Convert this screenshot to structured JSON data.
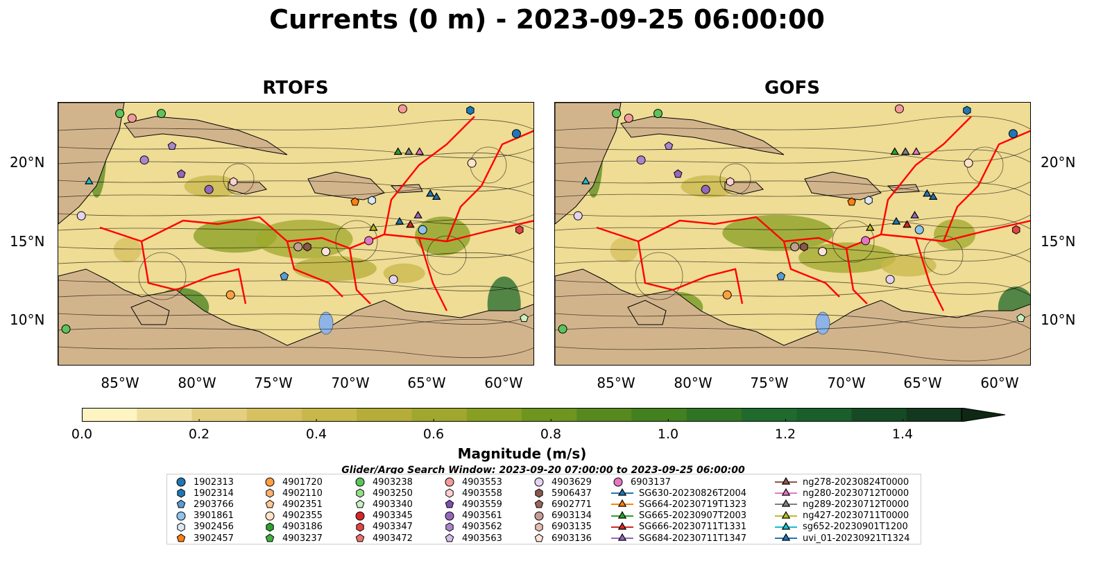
{
  "title": "Currents (0 m) - 2023-09-25 06:00:00",
  "panels": [
    {
      "title": "RTOFS"
    },
    {
      "title": "GOFS"
    }
  ],
  "lat_labels": [
    "20°N",
    "15°N",
    "10°N"
  ],
  "lon_labels": [
    "85°W",
    "80°W",
    "75°W",
    "70°W",
    "65°W",
    "60°W"
  ],
  "colorbar": {
    "label": "Magnitude (m/s)",
    "ticks": [
      "0.0",
      "0.2",
      "0.4",
      "0.6",
      "0.8",
      "1.0",
      "1.2",
      "1.4"
    ],
    "colors": [
      "#fdf4c1",
      "#f0e0a0",
      "#e3cf7f",
      "#d6c060",
      "#c8b84a",
      "#b5ad38",
      "#9fa82c",
      "#879f22",
      "#6e951e",
      "#58891e",
      "#43801f",
      "#2f7424",
      "#1f6a2c",
      "#195f2b",
      "#164a24",
      "#13381d",
      "#0e2813"
    ],
    "vmax": 1.5
  },
  "search_window": "Glider/Argo Search Window: 2023-09-20 07:00:00 to 2023-09-25 06:00:00",
  "legend": [
    [
      {
        "label": "1902313",
        "marker": "circle",
        "color": "#1f77b4"
      },
      {
        "label": "1902314",
        "marker": "hexagon",
        "color": "#1f77b4"
      },
      {
        "label": "2903766",
        "marker": "pentagon",
        "color": "#5a9bd4"
      },
      {
        "label": "3901861",
        "marker": "circle",
        "color": "#8dc3ee"
      },
      {
        "label": "3902456",
        "marker": "hexagon",
        "color": "#dbe9f6"
      },
      {
        "label": "3902457",
        "marker": "pentagon",
        "color": "#ff7f0e"
      }
    ],
    [
      {
        "label": "4901720",
        "marker": "circle",
        "color": "#ff9f40"
      },
      {
        "label": "4902110",
        "marker": "hexagon",
        "color": "#ffb070"
      },
      {
        "label": "4902351",
        "marker": "pentagon",
        "color": "#ffc895"
      },
      {
        "label": "4902355",
        "marker": "circle",
        "color": "#ffe3c8"
      },
      {
        "label": "4903186",
        "marker": "hexagon",
        "color": "#2ca02c"
      },
      {
        "label": "4903237",
        "marker": "pentagon",
        "color": "#3fb13f"
      }
    ],
    [
      {
        "label": "4903238",
        "marker": "circle",
        "color": "#5cc45c"
      },
      {
        "label": "4903250",
        "marker": "hexagon",
        "color": "#98df8a"
      },
      {
        "label": "4903340",
        "marker": "pentagon",
        "color": "#c8f0c0"
      },
      {
        "label": "4903345",
        "marker": "circle",
        "color": "#d62728"
      },
      {
        "label": "4903347",
        "marker": "hexagon",
        "color": "#e04545"
      },
      {
        "label": "4903472",
        "marker": "pentagon",
        "color": "#f07070"
      }
    ],
    [
      {
        "label": "4903553",
        "marker": "circle",
        "color": "#f49a9a"
      },
      {
        "label": "4903558",
        "marker": "hexagon",
        "color": "#ffd0d0"
      },
      {
        "label": "4903559",
        "marker": "pentagon",
        "color": "#7f4fb0"
      },
      {
        "label": "4903561",
        "marker": "circle",
        "color": "#9467bd"
      },
      {
        "label": "4903562",
        "marker": "hexagon",
        "color": "#a985cc"
      },
      {
        "label": "4903563",
        "marker": "pentagon",
        "color": "#d2bde6"
      }
    ],
    [
      {
        "label": "4903629",
        "marker": "circle",
        "color": "#e3d3f0"
      },
      {
        "label": "5906437",
        "marker": "hexagon",
        "color": "#8c564b"
      },
      {
        "label": "6902771",
        "marker": "pentagon",
        "color": "#9a6659"
      },
      {
        "label": "6903134",
        "marker": "circle",
        "color": "#c49c94"
      },
      {
        "label": "6903135",
        "marker": "hexagon",
        "color": "#e6bcb0"
      },
      {
        "label": "6903136",
        "marker": "pentagon",
        "color": "#fbe3da"
      }
    ],
    [
      {
        "label": "6903137",
        "marker": "circle",
        "color": "#e377c2"
      },
      {
        "label": "SG630-20230826T2004",
        "marker": "triangle",
        "color": "#1f77b4"
      },
      {
        "label": "SG664-20230719T1323",
        "marker": "triangle",
        "color": "#ff7f0e"
      },
      {
        "label": "SG665-20230907T2003",
        "marker": "triangle",
        "color": "#2ca02c"
      },
      {
        "label": "SG666-20230711T1331",
        "marker": "triangle",
        "color": "#d62728"
      },
      {
        "label": "SG684-20230711T1347",
        "marker": "triangle",
        "color": "#9467bd"
      }
    ],
    [
      {
        "label": "ng278-20230824T0000",
        "marker": "triangle",
        "color": "#8c564b"
      },
      {
        "label": "ng280-20230712T0000",
        "marker": "triangle",
        "color": "#e377c2"
      },
      {
        "label": "ng289-20230712T0000",
        "marker": "triangle",
        "color": "#7f7f7f"
      },
      {
        "label": "ng427-20230711T0000",
        "marker": "triangle",
        "color": "#bcbd22"
      },
      {
        "label": "sg652-20230901T1200",
        "marker": "triangle",
        "color": "#17becf"
      },
      {
        "label": "uvi_01-20230921T1324",
        "marker": "triangle",
        "color": "#1f77b4"
      }
    ]
  ],
  "map_extent": {
    "lon": [
      -89,
      -58
    ],
    "lat": [
      7,
      24
    ]
  },
  "land_color": "#d2b48c",
  "eez_color": "#ff0000",
  "observations": [
    {
      "lon": -84.2,
      "lat": 23.0,
      "color": "#f49a9a",
      "marker": "circle"
    },
    {
      "lon": -85.0,
      "lat": 23.3,
      "color": "#5cc45c",
      "marker": "circle"
    },
    {
      "lon": -82.3,
      "lat": 23.3,
      "color": "#5cc45c",
      "marker": "circle"
    },
    {
      "lon": -81.6,
      "lat": 21.2,
      "color": "#a985cc",
      "marker": "pentagon"
    },
    {
      "lon": -83.4,
      "lat": 20.3,
      "color": "#a985cc",
      "marker": "circle"
    },
    {
      "lon": -81.0,
      "lat": 19.4,
      "color": "#9467bd",
      "marker": "pentagon"
    },
    {
      "lon": -79.2,
      "lat": 18.4,
      "color": "#9467bd",
      "marker": "circle"
    },
    {
      "lon": -77.6,
      "lat": 18.9,
      "color": "#ffd0d0",
      "marker": "hexagon"
    },
    {
      "lon": -87.0,
      "lat": 18.9,
      "color": "#17becf",
      "marker": "triangle"
    },
    {
      "lon": -87.5,
      "lat": 16.7,
      "color": "#e3d3f0",
      "marker": "circle"
    },
    {
      "lon": -66.6,
      "lat": 23.6,
      "color": "#f49a9a",
      "marker": "circle"
    },
    {
      "lon": -62.2,
      "lat": 23.5,
      "color": "#1f77b4",
      "marker": "hexagon"
    },
    {
      "lon": -59.2,
      "lat": 22.0,
      "color": "#1f77b4",
      "marker": "circle"
    },
    {
      "lon": -66.9,
      "lat": 20.8,
      "color": "#2ca02c",
      "marker": "triangle"
    },
    {
      "lon": -66.2,
      "lat": 20.8,
      "color": "#7f7f7f",
      "marker": "triangle"
    },
    {
      "lon": -65.5,
      "lat": 20.8,
      "color": "#e377c2",
      "marker": "triangle"
    },
    {
      "lon": -62.1,
      "lat": 20.1,
      "color": "#ffe3c8",
      "marker": "circle"
    },
    {
      "lon": -69.7,
      "lat": 17.6,
      "color": "#ff7f0e",
      "marker": "pentagon"
    },
    {
      "lon": -68.6,
      "lat": 17.7,
      "color": "#dbe9f6",
      "marker": "hexagon"
    },
    {
      "lon": -64.8,
      "lat": 18.1,
      "color": "#1f77b4",
      "marker": "triangle"
    },
    {
      "lon": -64.4,
      "lat": 17.9,
      "color": "#1f77b4",
      "marker": "triangle"
    },
    {
      "lon": -65.6,
      "lat": 16.7,
      "color": "#9467bd",
      "marker": "triangle"
    },
    {
      "lon": -66.8,
      "lat": 16.3,
      "color": "#1f77b4",
      "marker": "triangle"
    },
    {
      "lon": -66.1,
      "lat": 16.1,
      "color": "#d62728",
      "marker": "triangle"
    },
    {
      "lon": -65.3,
      "lat": 15.8,
      "color": "#8dc3ee",
      "marker": "circle"
    },
    {
      "lon": -68.5,
      "lat": 15.9,
      "color": "#bcbd22",
      "marker": "triangle"
    },
    {
      "lon": -68.8,
      "lat": 15.1,
      "color": "#e377c2",
      "marker": "circle"
    },
    {
      "lon": -73.4,
      "lat": 14.7,
      "color": "#c49c94",
      "marker": "circle"
    },
    {
      "lon": -72.8,
      "lat": 14.7,
      "color": "#8c564b",
      "marker": "hexagon"
    },
    {
      "lon": -71.6,
      "lat": 14.4,
      "color": "#fbe3da",
      "marker": "circle"
    },
    {
      "lon": -74.3,
      "lat": 12.8,
      "color": "#5a9bd4",
      "marker": "pentagon"
    },
    {
      "lon": -67.2,
      "lat": 12.6,
      "color": "#e3d3f0",
      "marker": "circle"
    },
    {
      "lon": -77.8,
      "lat": 11.6,
      "color": "#ff9f40",
      "marker": "circle"
    },
    {
      "lon": -59.0,
      "lat": 15.8,
      "color": "#e04545",
      "marker": "hexagon"
    },
    {
      "lon": -58.7,
      "lat": 10.1,
      "color": "#c8f0c0",
      "marker": "pentagon"
    },
    {
      "lon": -88.5,
      "lat": 9.4,
      "color": "#5cc45c",
      "marker": "circle"
    }
  ]
}
